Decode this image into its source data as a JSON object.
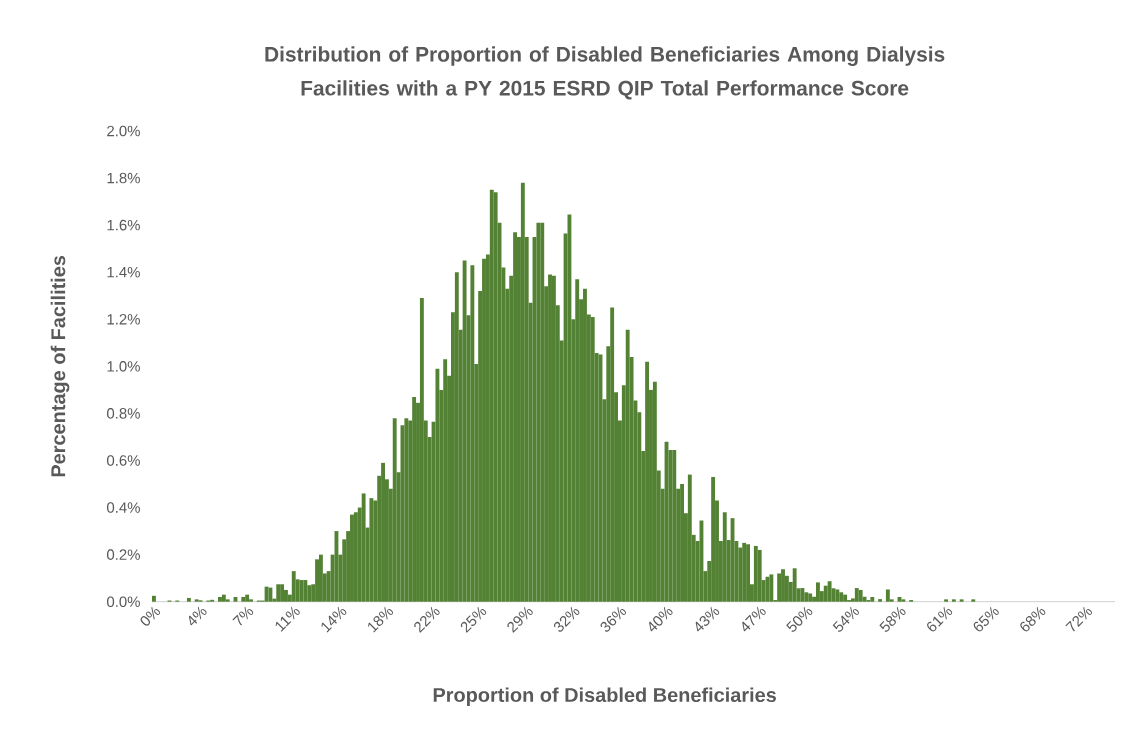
{
  "chart_data": {
    "type": "bar",
    "title": "Distribution of Proportion of Disabled Beneficiaries Among Dialysis Facilities with a PY 2015 ESRD QIP Total Performance Score",
    "xlabel": "Proportion of Disabled Beneficiaries",
    "ylabel": "Percentage of Facilities",
    "color": "#548235",
    "ylim": [
      0,
      2.0
    ],
    "yticks": [
      {
        "value": 0,
        "label": "0.0%"
      },
      {
        "value": 0.2,
        "label": "0.2%"
      },
      {
        "value": 0.4,
        "label": "0.4%"
      },
      {
        "value": 0.6,
        "label": "0.6%"
      },
      {
        "value": 0.8,
        "label": "0.8%"
      },
      {
        "value": 1.0,
        "label": "1.0%"
      },
      {
        "value": 1.2,
        "label": "1.2%"
      },
      {
        "value": 1.4,
        "label": "1.4%"
      },
      {
        "value": 1.6,
        "label": "1.6%"
      },
      {
        "value": 1.8,
        "label": "1.8%"
      },
      {
        "value": 2.0,
        "label": "2.0%"
      }
    ],
    "categories": [
      "0%",
      null,
      null,
      null,
      null,
      null,
      null,
      null,
      null,
      null,
      null,
      null,
      "4%",
      null,
      null,
      null,
      null,
      null,
      null,
      null,
      null,
      null,
      null,
      null,
      "7%",
      null,
      null,
      null,
      null,
      null,
      null,
      null,
      null,
      null,
      null,
      null,
      "11%",
      null,
      null,
      null,
      null,
      null,
      null,
      null,
      null,
      null,
      null,
      null,
      "14%",
      null,
      null,
      null,
      null,
      null,
      null,
      null,
      null,
      null,
      null,
      null,
      "18%",
      null,
      null,
      null,
      null,
      null,
      null,
      null,
      null,
      null,
      null,
      null,
      "22%",
      null,
      null,
      null,
      null,
      null,
      null,
      null,
      null,
      null,
      null,
      null,
      "25%",
      null,
      null,
      null,
      null,
      null,
      null,
      null,
      null,
      null,
      null,
      null,
      "29%",
      null,
      null,
      null,
      null,
      null,
      null,
      null,
      null,
      null,
      null,
      null,
      "32%",
      null,
      null,
      null,
      null,
      null,
      null,
      null,
      null,
      null,
      null,
      null,
      "36%",
      null,
      null,
      null,
      null,
      null,
      null,
      null,
      null,
      null,
      null,
      null,
      "40%",
      null,
      null,
      null,
      null,
      null,
      null,
      null,
      null,
      null,
      null,
      null,
      "43%",
      null,
      null,
      null,
      null,
      null,
      null,
      null,
      null,
      null,
      null,
      null,
      "47%",
      null,
      null,
      null,
      null,
      null,
      null,
      null,
      null,
      null,
      null,
      null,
      "50%",
      null,
      null,
      null,
      null,
      null,
      null,
      null,
      null,
      null,
      null,
      null,
      "54%",
      null,
      null,
      null,
      null,
      null,
      null,
      null,
      null,
      null,
      null,
      null,
      "58%",
      null,
      null,
      null,
      null,
      null,
      null,
      null,
      null,
      null,
      null,
      null,
      "61%",
      null,
      null,
      null,
      null,
      null,
      null,
      null,
      null,
      null,
      null,
      null,
      "65%",
      null,
      null,
      null,
      null,
      null,
      null,
      null,
      null,
      null,
      null,
      null,
      "68%",
      null,
      null,
      null,
      null,
      null,
      null,
      null,
      null,
      null,
      null,
      null,
      "72%",
      null,
      null,
      null,
      null,
      null,
      null,
      null
    ],
    "values": [
      0.025,
      0,
      0,
      0,
      0.005,
      0,
      0.005,
      0,
      0,
      0.016,
      0,
      0.01,
      0.006,
      0,
      0.005,
      0.008,
      0,
      0.02,
      0.03,
      0.01,
      0,
      0.02,
      0,
      0.02,
      0.03,
      0.01,
      0,
      0.005,
      0.005,
      0.064,
      0.06,
      0.013,
      0.074,
      0.074,
      0.05,
      0.03,
      0.13,
      0.095,
      0.092,
      0.092,
      0.07,
      0.074,
      0.18,
      0.2,
      0.12,
      0.13,
      0.2,
      0.3,
      0.2,
      0.265,
      0.3,
      0.37,
      0.38,
      0.4,
      0.46,
      0.315,
      0.44,
      0.43,
      0.535,
      0.59,
      0.52,
      0.48,
      0.78,
      0.55,
      0.75,
      0.78,
      0.77,
      0.87,
      0.845,
      1.29,
      0.77,
      0.7,
      0.765,
      0.99,
      0.9,
      1.03,
      0.96,
      1.23,
      1.4,
      1.156,
      1.45,
      1.217,
      1.43,
      1.01,
      1.32,
      1.457,
      1.475,
      1.75,
      1.74,
      1.61,
      1.42,
      1.33,
      1.385,
      1.57,
      1.55,
      1.78,
      1.55,
      1.27,
      1.55,
      1.61,
      1.61,
      1.34,
      1.39,
      1.385,
      1.26,
      1.11,
      1.565,
      1.645,
      1.2,
      1.37,
      1.285,
      1.33,
      1.22,
      1.21,
      1.057,
      1.05,
      0.86,
      1.085,
      1.25,
      0.89,
      0.77,
      0.92,
      1.155,
      1.04,
      0.855,
      0.805,
      0.64,
      1.02,
      0.9,
      0.935,
      0.557,
      0.48,
      0.68,
      0.645,
      0.645,
      0.48,
      0.5,
      0.376,
      0.54,
      0.284,
      0.258,
      0.345,
      0.13,
      0.173,
      0.53,
      0.43,
      0.258,
      0.38,
      0.262,
      0.355,
      0.258,
      0.23,
      0.25,
      0.244,
      0.074,
      0.237,
      0.22,
      0.092,
      0.106,
      0.116,
      0.007,
      0.12,
      0.138,
      0.11,
      0.084,
      0.142,
      0.057,
      0.058,
      0.04,
      0.035,
      0.021,
      0.082,
      0.045,
      0.068,
      0.087,
      0.057,
      0.052,
      0.04,
      0.03,
      0.007,
      0.014,
      0.058,
      0.05,
      0.021,
      0.007,
      0.02,
      0,
      0.011,
      0,
      0.052,
      0.01,
      0,
      0.02,
      0.01,
      0,
      0.007,
      0,
      0,
      0,
      0,
      0,
      0,
      0,
      0,
      0.01,
      0,
      0.01,
      0,
      0.01,
      0,
      0,
      0.01,
      0,
      0,
      0,
      0,
      0,
      0,
      0,
      0,
      0,
      0,
      0,
      0,
      0,
      0,
      0,
      0,
      0,
      0,
      0,
      0,
      0,
      0,
      0,
      0,
      0,
      0,
      0,
      0,
      0,
      0,
      0,
      0,
      0,
      0,
      0,
      0
    ]
  }
}
